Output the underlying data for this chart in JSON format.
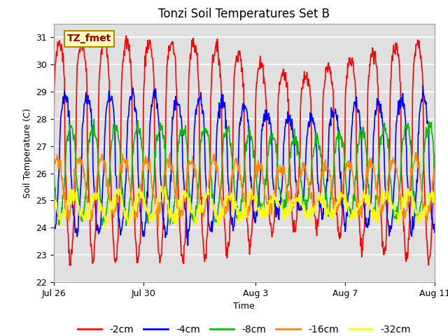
{
  "title": "Tonzi Soil Temperatures Set B",
  "xlabel": "Time",
  "ylabel": "Soil Temperature (C)",
  "ylim": [
    22.0,
    31.5
  ],
  "yticks": [
    22.0,
    23.0,
    24.0,
    25.0,
    26.0,
    27.0,
    28.0,
    29.0,
    30.0,
    31.0
  ],
  "n_days": 17.0,
  "xtick_labels": [
    "Jul 26",
    "Jul 30",
    "Aug 3",
    "Aug 7",
    "Aug 11"
  ],
  "xtick_positions": [
    0,
    4,
    9,
    13,
    17
  ],
  "annotation_label": "TZ_fmet",
  "series": [
    {
      "label": "-2cm",
      "color": "#ff0000",
      "amplitude": 4.0,
      "mean": 26.8,
      "phase_shift": 0.0,
      "sharpness": 3.0,
      "min_mod": -1.5,
      "linewidth": 1.2
    },
    {
      "label": "-4cm",
      "color": "#0000ff",
      "amplitude": 2.5,
      "mean": 26.3,
      "phase_shift": 0.25,
      "sharpness": 1.5,
      "min_mod": -0.5,
      "linewidth": 1.2
    },
    {
      "label": "-8cm",
      "color": "#00bb00",
      "amplitude": 1.7,
      "mean": 26.0,
      "phase_shift": 0.5,
      "sharpness": 1.0,
      "min_mod": 0.0,
      "linewidth": 1.2
    },
    {
      "label": "-16cm",
      "color": "#ff8800",
      "amplitude": 1.0,
      "mean": 25.5,
      "phase_shift": 0.9,
      "sharpness": 0.5,
      "min_mod": 0.0,
      "linewidth": 1.2
    },
    {
      "label": "-32cm",
      "color": "#ffff00",
      "amplitude": 0.45,
      "mean": 24.8,
      "phase_shift": 1.6,
      "sharpness": 0.0,
      "min_mod": 0.0,
      "linewidth": 1.2
    }
  ],
  "background_color": "#ffffff",
  "plot_bg_color": "#e0e0e0",
  "grid_color": "#ffffff",
  "title_fontsize": 12,
  "label_fontsize": 9,
  "tick_fontsize": 9,
  "legend_fontsize": 10
}
